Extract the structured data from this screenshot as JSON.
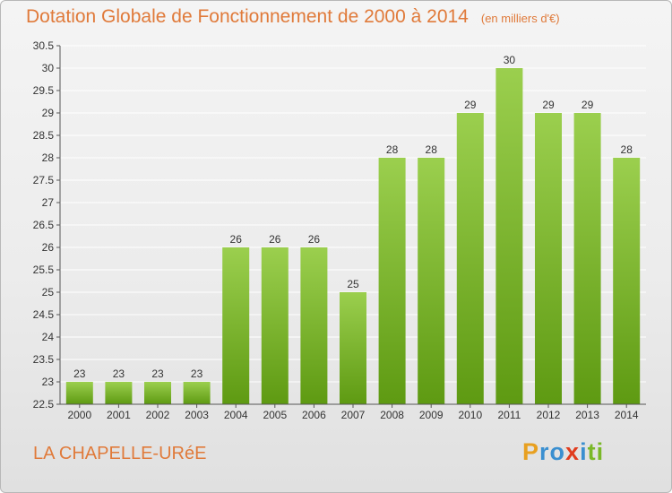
{
  "chart_data": {
    "type": "bar",
    "title": "Dotation Globale de Fonctionnement de 2000 à 2014",
    "unit_label": "(en milliers d'€)",
    "categories": [
      "2000",
      "2001",
      "2002",
      "2003",
      "2004",
      "2005",
      "2006",
      "2007",
      "2008",
      "2009",
      "2010",
      "2011",
      "2012",
      "2013",
      "2014"
    ],
    "values": [
      23,
      23,
      23,
      23,
      26,
      26,
      26,
      25,
      28,
      28,
      29,
      30,
      29,
      29,
      28
    ],
    "data_labels": [
      "23",
      "23",
      "23",
      "23",
      "26",
      "26",
      "26",
      "25",
      "28",
      "28",
      "29",
      "30",
      "29",
      "29",
      "28"
    ],
    "xlabel": "",
    "ylabel": "",
    "ylim": [
      22.5,
      30.5
    ],
    "yticks": [
      22.5,
      23,
      23.5,
      24,
      24.5,
      25,
      25.5,
      26,
      26.5,
      27,
      27.5,
      28,
      28.5,
      29,
      29.5,
      30,
      30.5
    ],
    "ytick_labels": [
      "22.5",
      "23",
      "23.5",
      "24",
      "24.5",
      "25",
      "25.5",
      "26",
      "26.5",
      "27",
      "27.5",
      "28",
      "28.5",
      "29",
      "29.5",
      "30",
      "30.5"
    ],
    "grid": true,
    "bar_color_top": "#9bcf4e",
    "bar_color_bottom": "#5e9a12"
  },
  "footer": {
    "city": "LA CHAPELLE-URéE",
    "logo_letters": [
      "P",
      "r",
      "o",
      "x",
      "i",
      "t",
      "i"
    ],
    "logo_colors": [
      "#e8a020",
      "#3a8fd0",
      "#3a8fd0",
      "#e03c1e",
      "#3a8fd0",
      "#7ab828",
      "#7ab828"
    ]
  },
  "colors": {
    "accent": "#e07a3a",
    "axis_text": "#333333",
    "grid": "#ffffff"
  }
}
